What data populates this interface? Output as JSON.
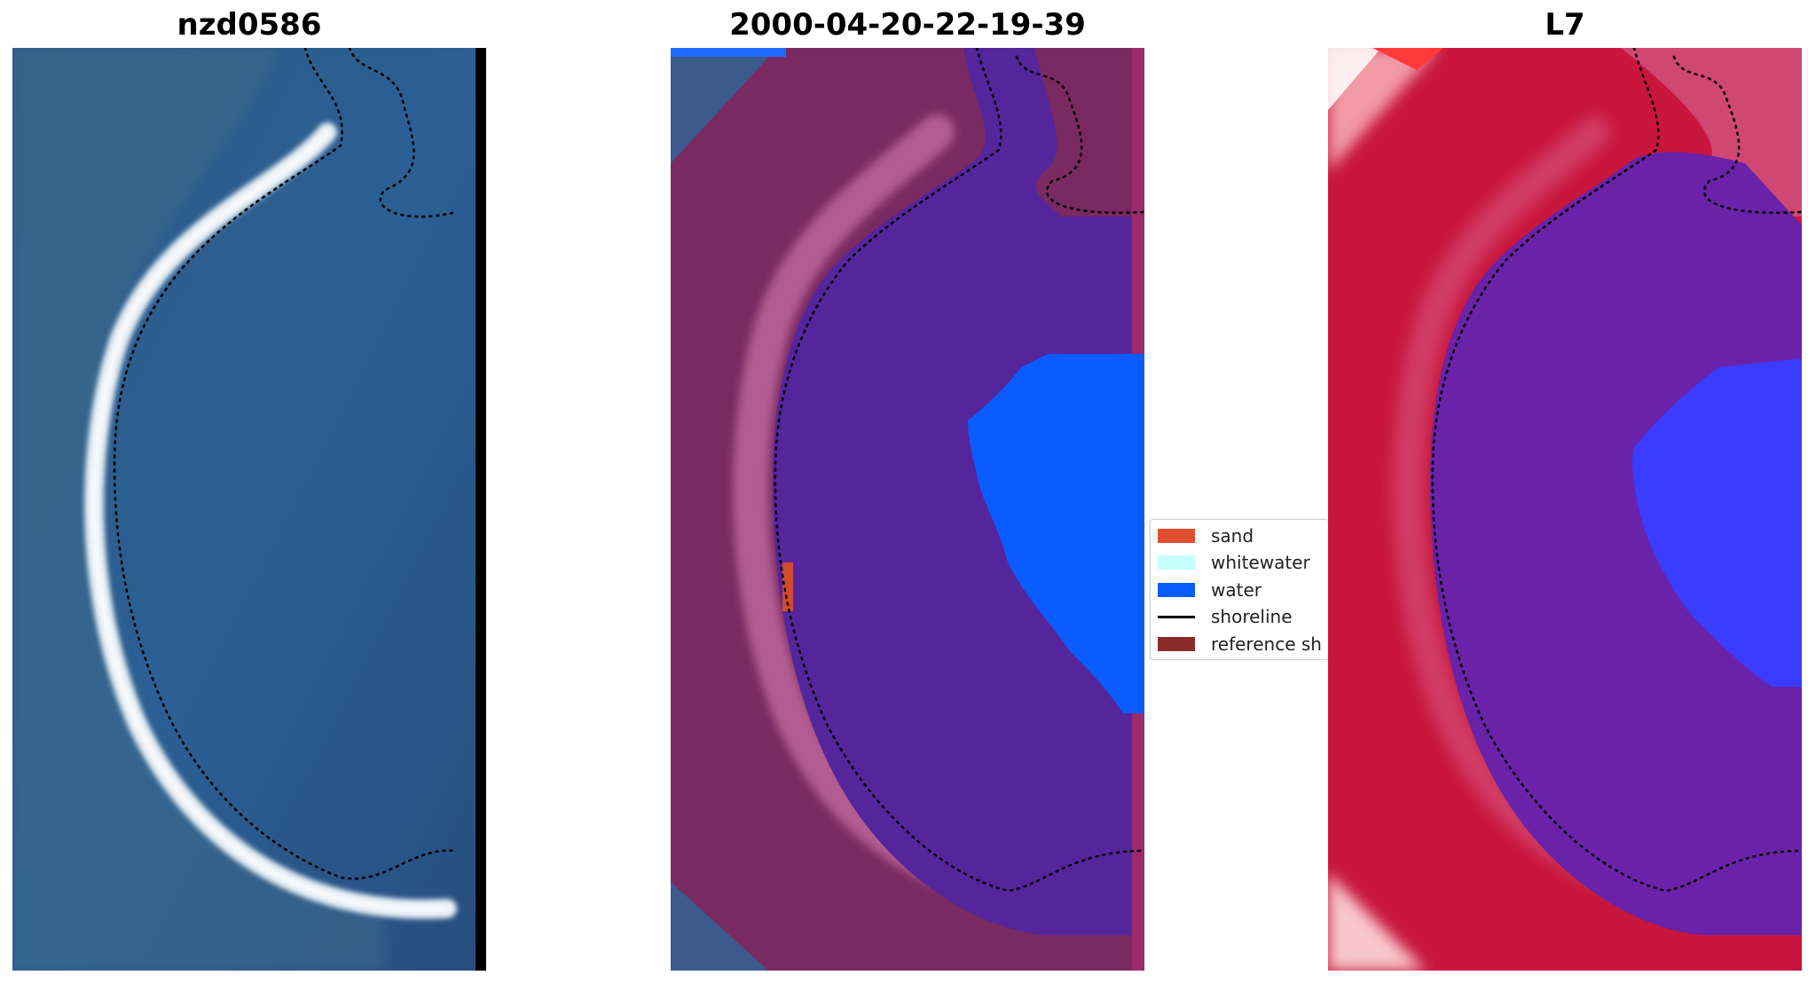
{
  "panels": {
    "left": {
      "title": "nzd0586"
    },
    "middle": {
      "title": "2000-04-20-22-19-39"
    },
    "right": {
      "title": "L7"
    }
  },
  "legend": {
    "items": [
      {
        "label": "sand",
        "color": "#e04f2e",
        "kind": "patch"
      },
      {
        "label": "whitewater",
        "color": "#c8ffff",
        "kind": "patch"
      },
      {
        "label": "water",
        "color": "#0a5cff",
        "kind": "patch"
      },
      {
        "label": "shoreline",
        "color": "#000000",
        "kind": "line"
      },
      {
        "label": "reference sh",
        "color": "#8b2a2a",
        "kind": "patch"
      }
    ]
  },
  "colors": {
    "rgb_water": "#2b5a8c",
    "rgb_beach": "#e6eef5",
    "class_land": "#7a2a62",
    "class_water_dark": "#55259c",
    "class_water": "#0a5cff",
    "index_land": "#c8163c",
    "index_water": "#6a22a8",
    "index_bright_water": "#3a3cff"
  }
}
